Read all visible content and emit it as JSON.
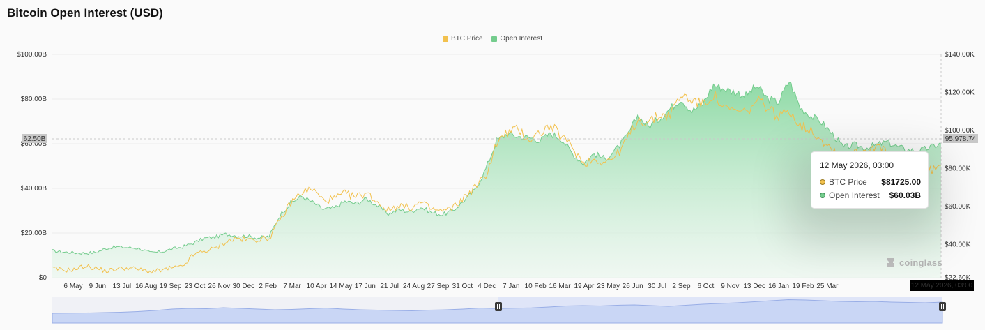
{
  "title": "Bitcoin Open Interest (USD)",
  "colors": {
    "btc_price": "#f2c14e",
    "open_interest": "#74cc8d",
    "area_top": "#9be0b0",
    "navigator_fill": "#c9d6f5",
    "navigator_line": "#99aee6",
    "tag_bg": "#000000"
  },
  "legend": {
    "btc_price": "BTC Price",
    "open_interest": "Open Interest"
  },
  "crosshair": {
    "left_value": "62.50B",
    "right_value": "95,978.74"
  },
  "tooltip": {
    "date": "12 May 2026, 03:00",
    "rows": [
      {
        "name": "BTC Price",
        "value": "$81725.00"
      },
      {
        "name": "Open Interest",
        "value": "$60.03B"
      }
    ]
  },
  "x_tag": "12 May 2026, 03:00",
  "watermark": "coinglass",
  "chart_data": {
    "type": "area",
    "title": "Bitcoin Open Interest (USD)",
    "x_ticks": [
      "6 May",
      "9 Jun",
      "13 Jul",
      "16 Aug",
      "19 Sep",
      "23 Oct",
      "26 Nov",
      "30 Dec",
      "2 Feb",
      "7 Mar",
      "10 Apr",
      "14 May",
      "17 Jun",
      "21 Jul",
      "24 Aug",
      "27 Sep",
      "31 Oct",
      "4 Dec",
      "7 Jan",
      "10 Feb",
      "16 Mar",
      "19 Apr",
      "23 May",
      "26 Jun",
      "30 Jul",
      "2 Sep",
      "6 Oct",
      "9 Nov",
      "13 Dec",
      "16 Jan",
      "19 Feb",
      "25 Mar"
    ],
    "y_left_ticks": [
      "$0",
      "$20.00B",
      "$40.00B",
      "$60.00B",
      "$80.00B",
      "$100.00B"
    ],
    "y_right_ticks": [
      "$22.60K",
      "$40.00K",
      "$60.00K",
      "$80.00K",
      "$100.00K",
      "$120.00K",
      "$140.00K"
    ],
    "y_left_range": [
      0,
      100
    ],
    "y_right_range": [
      22.6,
      140
    ],
    "legend_position": "top-center",
    "grid": true,
    "series": [
      {
        "name": "Open Interest",
        "axis": "left",
        "unit": "B USD",
        "values": [
          12,
          11.5,
          11.2,
          11,
          11.3,
          13.2,
          13.8,
          13.5,
          13.2,
          11.2,
          11.5,
          12.8,
          13.8,
          15.5,
          17.6,
          18.2,
          19.5,
          18.8,
          18.6,
          17.8,
          18.5,
          28,
          33.5,
          36.5,
          33.8,
          30.6,
          31.2,
          34.2,
          33.2,
          35.4,
          32.2,
          28.6,
          30.5,
          29.5,
          31.6,
          29.2,
          28.2,
          30.1,
          34.6,
          39.2,
          48.8,
          61.4,
          64.5,
          63.2,
          62.8,
          61.5,
          64.6,
          62.1,
          55.5,
          51.2,
          55.6,
          53.1,
          57.4,
          63.2,
          72.5,
          67.8,
          71.2,
          75.8,
          80.1,
          74.5,
          77.8,
          86.4,
          84.5,
          83.1,
          81.6,
          85.8,
          80.2,
          78.6,
          88.2,
          76.2,
          72.4,
          69.5,
          64.2,
          58.3,
          59.5,
          58.1,
          59.4,
          60.8,
          58.6,
          57.2,
          56.8,
          58.4,
          60.03
        ]
      },
      {
        "name": "BTC Price",
        "axis": "right",
        "unit": "K USD",
        "values": [
          27.5,
          26.5,
          26.8,
          28.8,
          27.6,
          26.1,
          27.3,
          27.8,
          26.9,
          25.8,
          26.3,
          27.7,
          28.2,
          34.5,
          36.6,
          37.8,
          41.5,
          43.3,
          42.4,
          42.8,
          43.5,
          52.6,
          62.1,
          67.5,
          69.3,
          63.3,
          64.2,
          66.8,
          65.1,
          67.2,
          62.4,
          58.1,
          60.8,
          59.2,
          62.1,
          58.6,
          57.5,
          59.5,
          64.8,
          70.2,
          76.2,
          93.5,
          98.8,
          100.6,
          95.1,
          98.9,
          102.4,
          96.6,
          91.2,
          82.8,
          84.8,
          83.6,
          86.3,
          95.1,
          105.6,
          104.3,
          107.8,
          108.5,
          118.5,
          116.2,
          113.5,
          118.8,
          111.2,
          110.3,
          109.2,
          115.4,
          112.8,
          106.6,
          111.2,
          102.5,
          100.3,
          95.2,
          90.1,
          86.4,
          87.8,
          89.5,
          92.1,
          88.1,
          85.2,
          74.5,
          72.2,
          78.8,
          81.725
        ]
      }
    ],
    "navigator_values": [
      6,
      6.2,
      6.5,
      7,
      7.5,
      8.5,
      10,
      12,
      13,
      12.5,
      14,
      13,
      12,
      11,
      11.5,
      12.5,
      13.5,
      12,
      11,
      10.5,
      10,
      9.5,
      10.5,
      11,
      12,
      13.5,
      12.8,
      13.2,
      13.8,
      15,
      16.5,
      17,
      16.5,
      17.5,
      18,
      17,
      16,
      17.5,
      19,
      20,
      21,
      22.5,
      24,
      25.5,
      25,
      24,
      23,
      22.5,
      23,
      22,
      21.5,
      21,
      22
    ]
  }
}
